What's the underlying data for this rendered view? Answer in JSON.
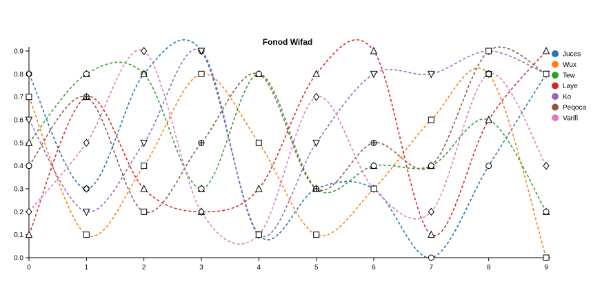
{
  "chart_data": {
    "type": "line",
    "title": "Fonod Wifad",
    "xlabel": "",
    "ylabel": "",
    "x": [
      0,
      1,
      2,
      3,
      4,
      5,
      6,
      7,
      8,
      9
    ],
    "xlim": [
      0,
      9
    ],
    "ylim": [
      0,
      1.0
    ],
    "xticks": [
      "0",
      "1",
      "2",
      "3",
      "4",
      "5",
      "6",
      "7",
      "8",
      "9"
    ],
    "yticks": [
      "0.0",
      "0.1",
      "0.2",
      "0.3",
      "0.4",
      "0.5",
      "0.6",
      "0.7",
      "0.8",
      "0.9"
    ],
    "grid": false,
    "legend_position": "right",
    "line_style": "dashed",
    "series": [
      {
        "name": "Juces",
        "color": "#1f77b4",
        "marker": "circle",
        "values": [
          0.8,
          0.3,
          0.8,
          0.9,
          0.1,
          0.3,
          0.3,
          0.0,
          0.4,
          0.8
        ]
      },
      {
        "name": "Wux",
        "color": "#ff7f0e",
        "marker": "square",
        "values": [
          0.7,
          0.1,
          0.4,
          0.8,
          0.5,
          0.1,
          0.3,
          0.6,
          0.8,
          0.0
        ]
      },
      {
        "name": "Tew",
        "color": "#2ca02c",
        "marker": "triangle",
        "values": [
          0.5,
          0.8,
          0.8,
          0.3,
          0.8,
          0.3,
          0.4,
          0.4,
          0.6,
          0.2
        ]
      },
      {
        "name": "Laye",
        "color": "#d62728",
        "marker": "triangle",
        "values": [
          0.1,
          0.7,
          0.3,
          0.2,
          0.3,
          0.8,
          0.9,
          0.1,
          0.6,
          0.9
        ]
      },
      {
        "name": "Ko",
        "color": "#9467bd",
        "marker": "down",
        "values": [
          0.6,
          0.2,
          0.5,
          0.9,
          0.1,
          0.5,
          0.8,
          0.8,
          0.9,
          0.8
        ]
      },
      {
        "name": "Peqoca",
        "color": "#8c564b",
        "marker": "plus",
        "values": [
          0.4,
          0.7,
          0.2,
          0.5,
          0.8,
          0.3,
          0.5,
          0.4,
          0.9,
          0.8
        ]
      },
      {
        "name": "Varifi",
        "color": "#e377c2",
        "marker": "diamond",
        "values": [
          0.2,
          0.5,
          0.9,
          0.2,
          0.1,
          0.7,
          0.3,
          0.2,
          0.8,
          0.4
        ]
      }
    ],
    "extra_markers": [
      {
        "x": 0,
        "y": 0.8,
        "marker": "diamond"
      },
      {
        "x": 0,
        "y": 0.4,
        "marker": "circle"
      },
      {
        "x": 1,
        "y": 0.8,
        "marker": "circle"
      },
      {
        "x": 1,
        "y": 0.3,
        "marker": "diamond"
      },
      {
        "x": 2,
        "y": 0.9,
        "marker": "diamond"
      },
      {
        "x": 2,
        "y": 0.2,
        "marker": "square"
      },
      {
        "x": 3,
        "y": 0.9,
        "marker": "down"
      },
      {
        "x": 3,
        "y": 0.3,
        "marker": "circle"
      },
      {
        "x": 4,
        "y": 0.8,
        "marker": "circle"
      },
      {
        "x": 4,
        "y": 0.1,
        "marker": "square"
      },
      {
        "x": 6,
        "y": 0.4,
        "marker": "circle"
      },
      {
        "x": 6,
        "y": 0.3,
        "marker": "square"
      },
      {
        "x": 7,
        "y": 0.4,
        "marker": "circle"
      },
      {
        "x": 8,
        "y": 0.8,
        "marker": "circle"
      },
      {
        "x": 8,
        "y": 0.9,
        "marker": "square"
      },
      {
        "x": 9,
        "y": 0.8,
        "marker": "square"
      },
      {
        "x": 9,
        "y": 0.2,
        "marker": "circle"
      }
    ]
  }
}
